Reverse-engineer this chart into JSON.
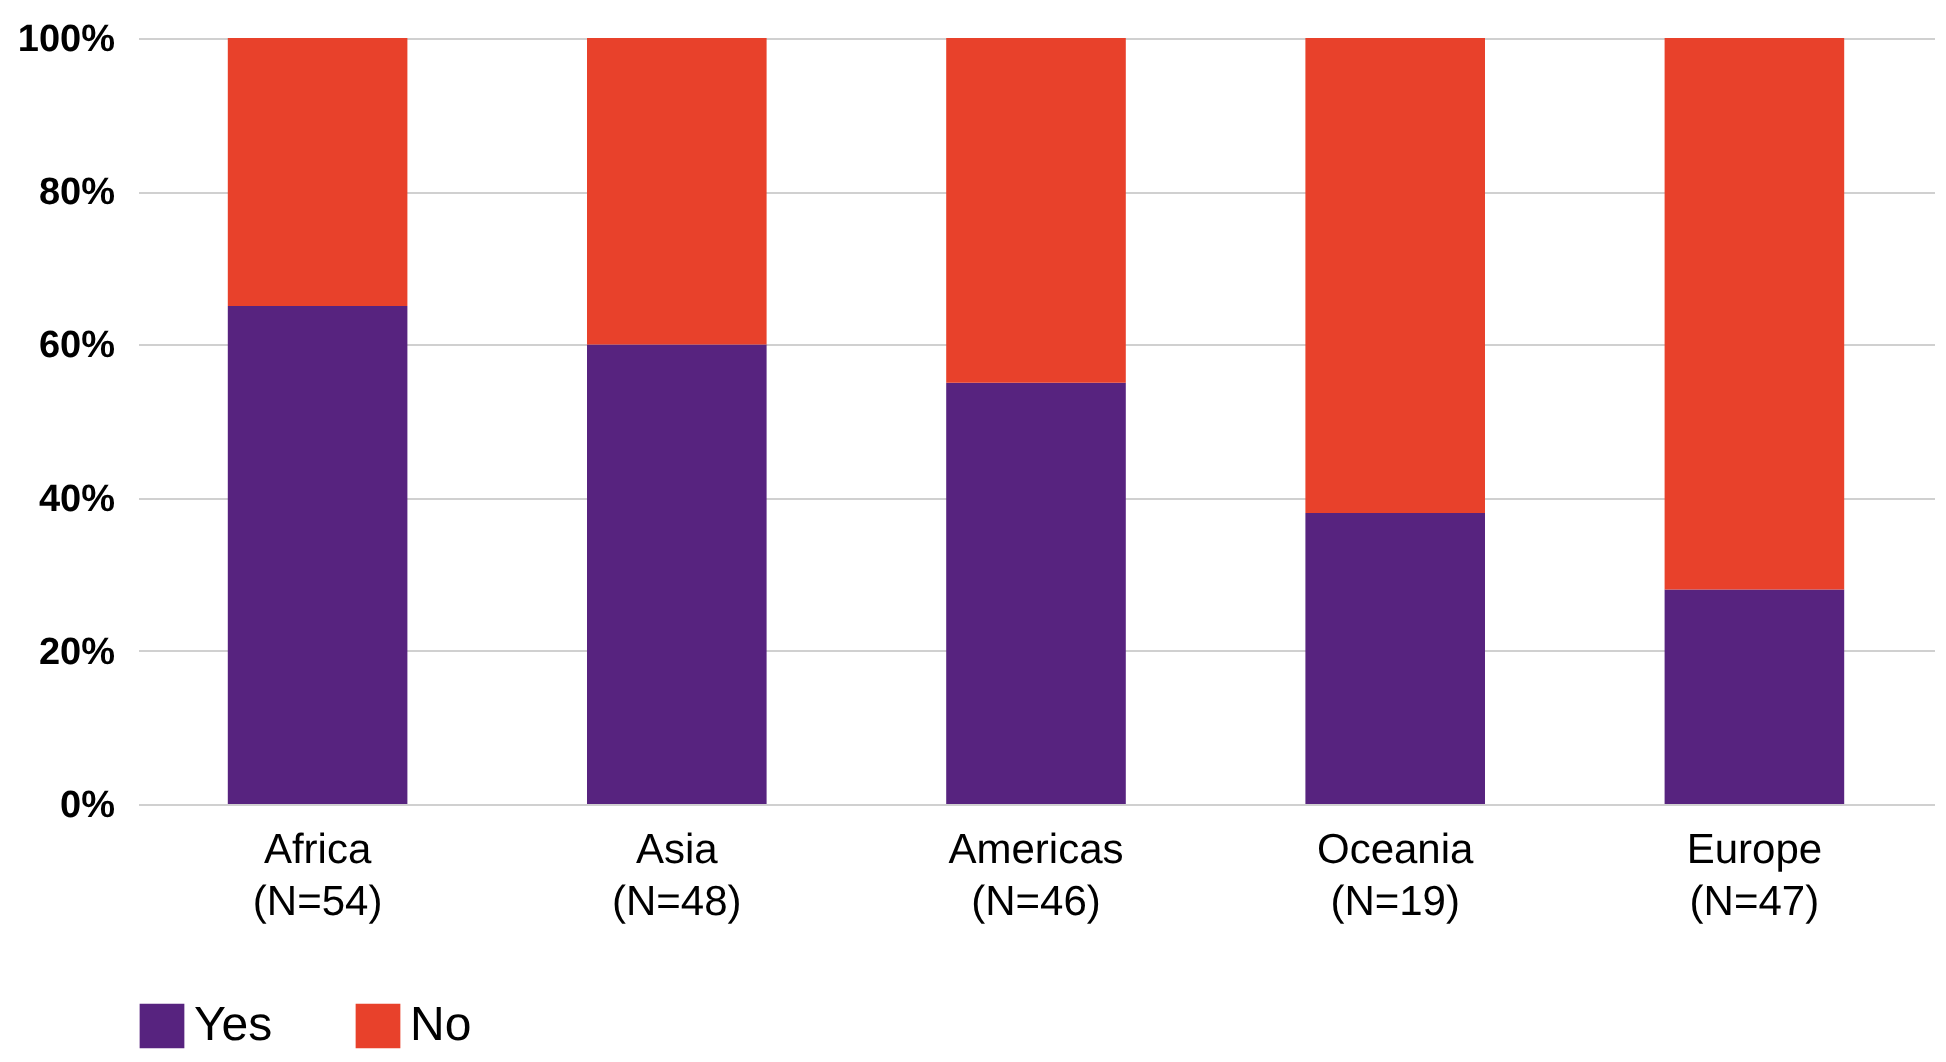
{
  "chart_data": {
    "type": "bar",
    "stacked": true,
    "categories": [
      "Africa\n(N=54)",
      "Asia\n(N=48)",
      "Americas\n(N=46)",
      "Oceania\n(N=19)",
      "Europe\n(N=47)"
    ],
    "series": [
      {
        "name": "Yes",
        "color": "#57237f",
        "values": [
          65,
          60,
          55,
          38,
          28
        ]
      },
      {
        "name": "No",
        "color": "#e8412b",
        "values": [
          35,
          40,
          45,
          62,
          72
        ]
      }
    ],
    "ylim": [
      0,
      100
    ],
    "yticks": [
      {
        "value": 0,
        "label": "0%"
      },
      {
        "value": 20,
        "label": "20%"
      },
      {
        "value": 40,
        "label": "40%"
      },
      {
        "value": 60,
        "label": "60%"
      },
      {
        "value": 80,
        "label": "80%"
      },
      {
        "value": 100,
        "label": "100%"
      }
    ],
    "grid": "y",
    "legend": "bottom left"
  }
}
